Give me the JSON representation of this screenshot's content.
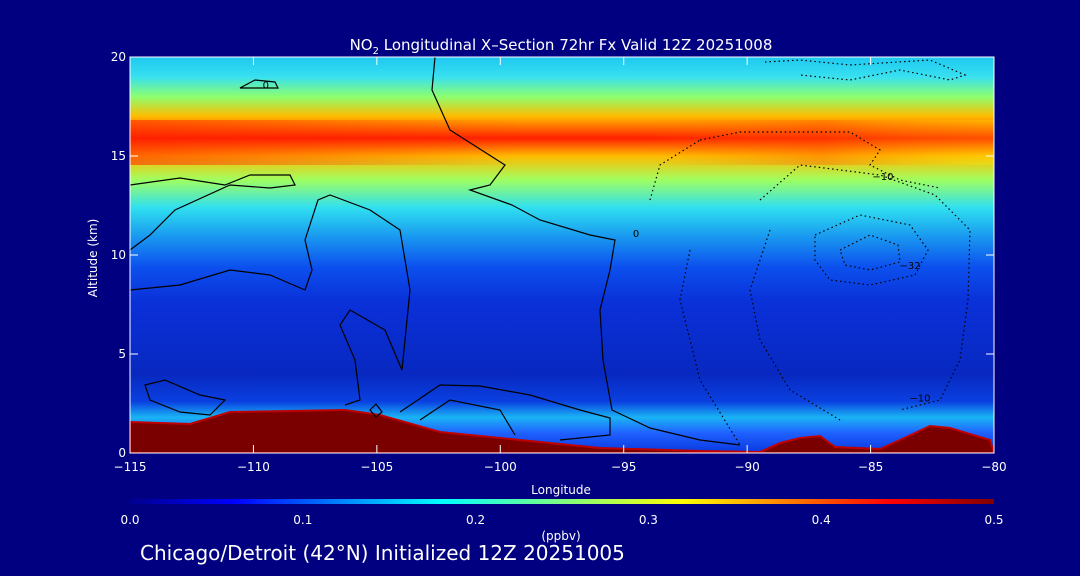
{
  "chart_data": {
    "type": "heatmap",
    "title_main": "NO",
    "title_sub": "2",
    "title_rest": " Longitudinal X–Section 72hr  Fx Valid 12Z 20251008",
    "xlabel": "Longitude",
    "ylabel": "Altitude (km)",
    "xlim": [
      -115,
      -80
    ],
    "ylim": [
      0,
      20
    ],
    "xticks": [
      -115,
      -110,
      -105,
      -100,
      -95,
      -90,
      -85,
      -80
    ],
    "xtick_labels": [
      "−115",
      "−110",
      "−105",
      "−100",
      "−95",
      "−90",
      "−85",
      "−80"
    ],
    "yticks": [
      0,
      5,
      10,
      15,
      20
    ],
    "ytick_labels": [
      "0",
      "5",
      "10",
      "15",
      "20"
    ],
    "colorbar": {
      "label": "(ppbv)",
      "min": 0.0,
      "max": 0.5,
      "ticks": [
        0.0,
        0.1,
        0.2,
        0.3,
        0.4,
        0.5
      ],
      "tick_labels": [
        "0.0",
        "0.1",
        "0.2",
        "0.3",
        "0.4",
        "0.5"
      ]
    },
    "contour_labels": [
      {
        "text": "0",
        "lon": -109.5,
        "alt": 18.6
      },
      {
        "text": "0",
        "lon": -94.5,
        "alt": 11.1
      },
      {
        "text": "−10",
        "lon": -84.5,
        "alt": 14.0
      },
      {
        "text": "−32",
        "lon": -83.4,
        "alt": 9.5
      },
      {
        "text": "−10",
        "lon": -83.0,
        "alt": 2.8
      }
    ],
    "features": [
      {
        "name": "upper NO2 layer",
        "alt_center": 15.5,
        "peak_ppbv": 0.5
      },
      {
        "name": "surface plumes",
        "lons": [
          -87.5,
          -82.0
        ],
        "peak_ppbv": 0.5
      }
    ]
  },
  "footer": "Chicago/Detroit (42°N) Initialized 12Z 20251005",
  "colors": {
    "background": "#000080",
    "text": "#ffffff",
    "contour": "#000000",
    "terrain_edge": "#8b0000"
  }
}
